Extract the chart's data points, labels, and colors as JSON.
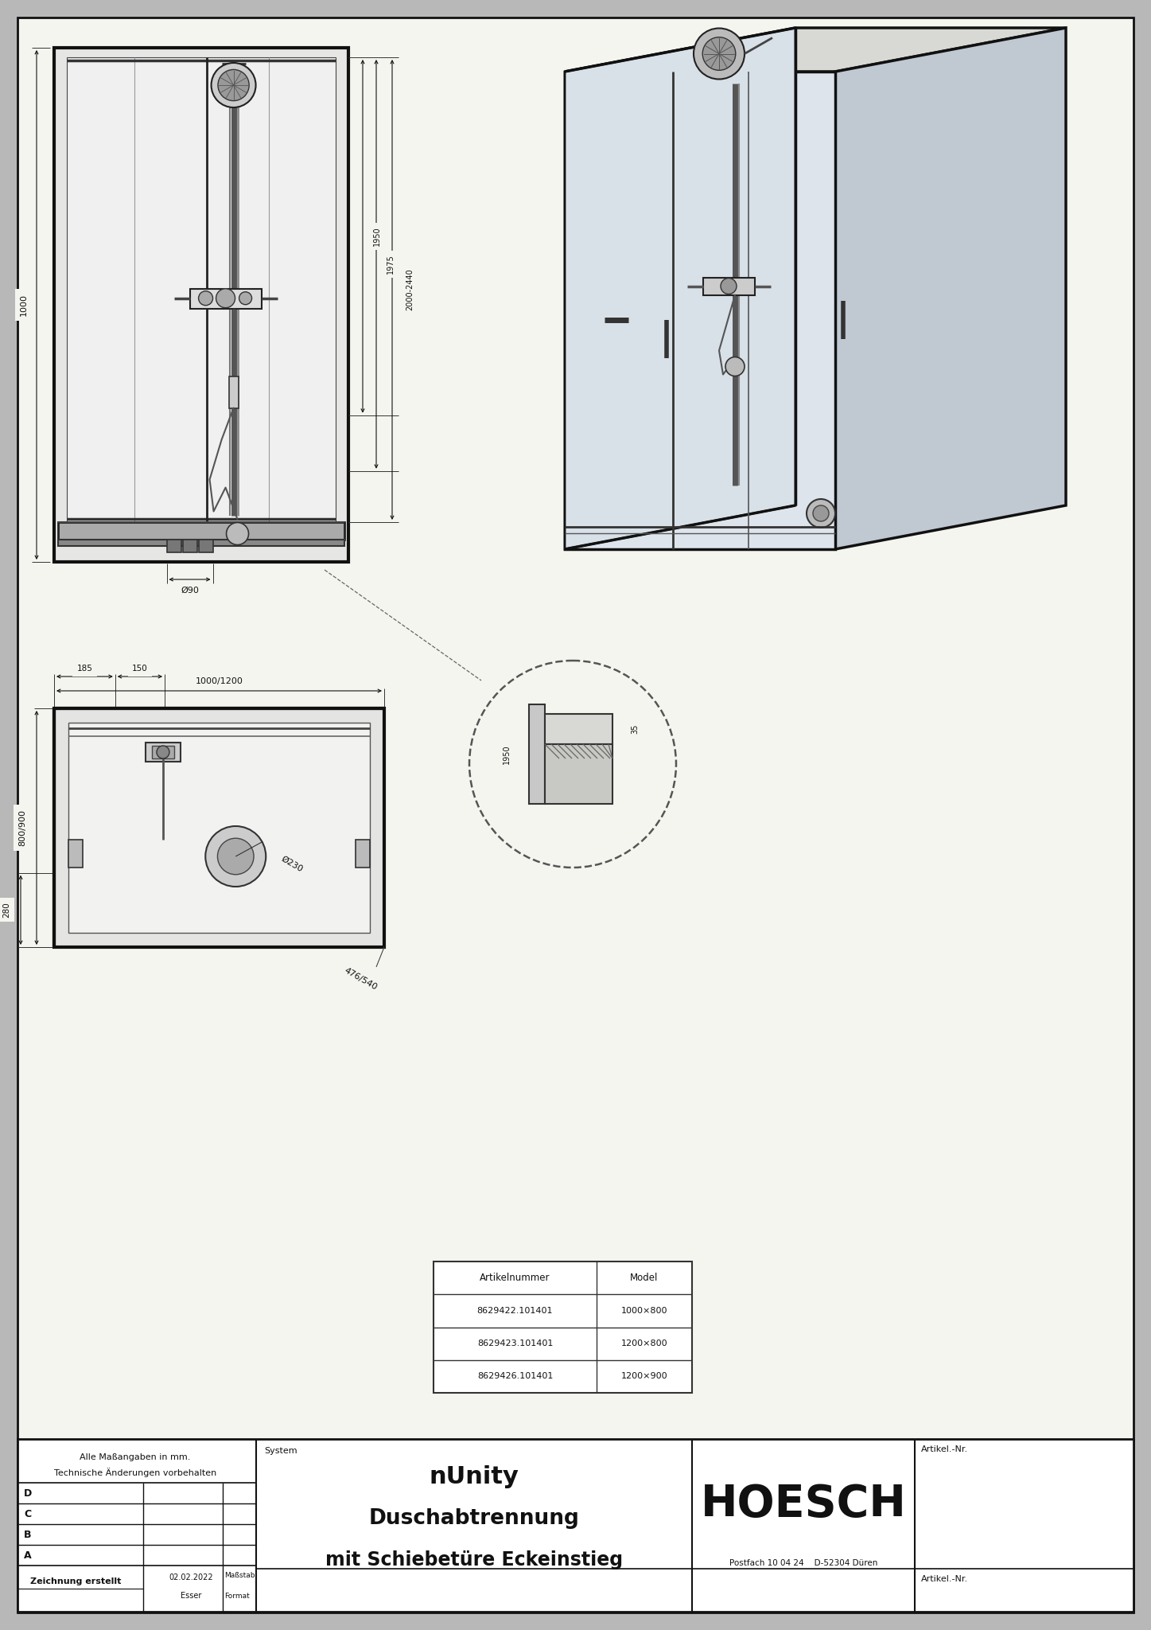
{
  "bg_color": "#b8b8b8",
  "paper_color": "#f5f5f0",
  "line_color": "#111111",
  "title_line1": "nUnity",
  "title_line2": "Duschabtrennung",
  "title_line3": "mit Schiebetüre Eckeinstieg",
  "brand": "HOESCH",
  "brand_sub": "Postfach 10 04 24    D-52304 Düren",
  "footer_left1": "Alle Maßangaben in mm.",
  "footer_left2": "Technische Änderungen vorbehalten",
  "footer_date": "02.02.2022",
  "footer_person": "Esser",
  "footer_created": "Zeichnung erstellt",
  "footer_masstab": "Maßstab",
  "footer_format": "Format",
  "footer_system": "System",
  "footer_artikel": "Artikel.-Nr.",
  "table_header1": "Artikelnummer",
  "table_header2": "Model",
  "table_rows": [
    [
      "8629422.101401",
      "1000×800"
    ],
    [
      "8629423.101401",
      "1200×800"
    ],
    [
      "8629426.101401",
      "1200×900"
    ]
  ],
  "dim_1000": "1000",
  "dim_1950": "1950",
  "dim_1975": "1975",
  "dim_2000_2440": "2000-2440",
  "dim_90": "Ø90",
  "dim_1000_1200": "1000/1200",
  "dim_185": "185",
  "dim_150": "150",
  "dim_800_900": "800/900",
  "dim_280": "280",
  "dim_230": "Ø230",
  "dim_476_540": "476/540",
  "dim_35": "35",
  "dim_1950b": "1950"
}
